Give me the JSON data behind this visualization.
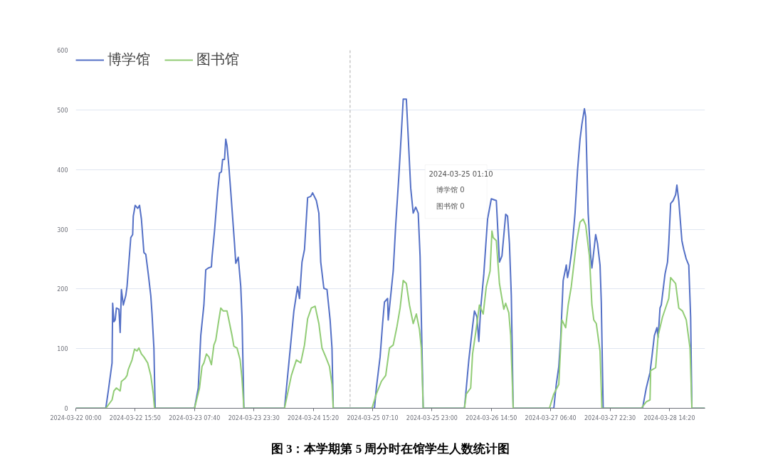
{
  "chart_data": {
    "type": "line",
    "series": [
      {
        "name": "博学馆",
        "color": "#5470c6",
        "x": [
          "2024-03-22T00:00",
          "2024-03-22T08:00",
          "2024-03-22T08:40",
          "2024-03-22T09:40",
          "2024-03-22T09:50",
          "2024-03-22T10:10",
          "2024-03-22T10:30",
          "2024-03-22T10:50",
          "2024-03-22T11:30",
          "2024-03-22T11:50",
          "2024-03-22T12:10",
          "2024-03-22T12:40",
          "2024-03-22T13:20",
          "2024-03-22T13:40",
          "2024-03-22T14:40",
          "2024-03-22T15:10",
          "2024-03-22T15:20",
          "2024-03-22T15:50",
          "2024-03-22T16:30",
          "2024-03-22T17:00",
          "2024-03-22T17:30",
          "2024-03-22T18:10",
          "2024-03-22T18:40",
          "2024-03-22T19:20",
          "2024-03-22T20:00",
          "2024-03-22T20:20",
          "2024-03-22T20:50",
          "2024-03-22T21:10",
          "2024-03-23T07:40",
          "2024-03-23T08:40",
          "2024-03-23T09:20",
          "2024-03-23T10:10",
          "2024-03-23T10:40",
          "2024-03-23T11:20",
          "2024-03-23T12:10",
          "2024-03-23T12:20",
          "2024-03-23T13:00",
          "2024-03-23T13:50",
          "2024-03-23T14:20",
          "2024-03-23T14:50",
          "2024-03-23T15:10",
          "2024-03-23T15:40",
          "2024-03-23T16:00",
          "2024-03-23T16:20",
          "2024-03-23T16:50",
          "2024-03-23T17:20",
          "2024-03-23T18:20",
          "2024-03-23T18:40",
          "2024-03-23T19:20",
          "2024-03-23T20:00",
          "2024-03-23T20:20",
          "2024-03-23T20:50",
          "2024-03-24T07:40",
          "2024-03-24T08:50",
          "2024-03-24T10:10",
          "2024-03-24T11:10",
          "2024-03-24T11:40",
          "2024-03-24T12:20",
          "2024-03-24T13:00",
          "2024-03-24T13:50",
          "2024-03-24T14:40",
          "2024-03-24T15:10",
          "2024-03-24T16:10",
          "2024-03-24T16:50",
          "2024-03-24T17:20",
          "2024-03-24T18:10",
          "2024-03-24T19:00",
          "2024-03-24T19:50",
          "2024-03-24T20:20",
          "2024-03-24T20:40",
          "2024-03-25T07:40",
          "2024-03-25T08:10",
          "2024-03-25T09:10",
          "2024-03-25T09:50",
          "2024-03-25T10:20",
          "2024-03-25T11:10",
          "2024-03-25T11:20",
          "2024-03-25T12:00",
          "2024-03-25T12:40",
          "2024-03-25T13:20",
          "2024-03-25T14:10",
          "2024-03-25T14:50",
          "2024-03-25T15:20",
          "2024-03-25T16:10",
          "2024-03-25T16:30",
          "2024-03-25T17:20",
          "2024-03-25T18:00",
          "2024-03-25T18:40",
          "2024-03-25T19:20",
          "2024-03-25T19:50",
          "2024-03-25T20:20",
          "2024-03-25T20:40",
          "2024-03-26T07:40",
          "2024-03-26T08:50",
          "2024-03-26T09:50",
          "2024-03-26T10:20",
          "2024-03-26T11:00",
          "2024-03-26T11:30",
          "2024-03-26T12:00",
          "2024-03-26T12:50",
          "2024-03-26T13:50",
          "2024-03-26T14:50",
          "2024-03-26T16:10",
          "2024-03-26T17:00",
          "2024-03-26T17:40",
          "2024-03-26T18:40",
          "2024-03-26T19:10",
          "2024-03-26T19:40",
          "2024-03-26T20:10",
          "2024-03-26T20:40",
          "2024-03-27T07:30",
          "2024-03-27T08:10",
          "2024-03-27T08:50",
          "2024-03-27T09:20",
          "2024-03-27T10:00",
          "2024-03-27T10:50",
          "2024-03-27T11:10",
          "2024-03-27T11:40",
          "2024-03-27T12:20",
          "2024-03-27T13:10",
          "2024-03-27T13:50",
          "2024-03-27T14:30",
          "2024-03-27T15:00",
          "2024-03-27T15:40",
          "2024-03-27T16:00",
          "2024-03-27T16:40",
          "2024-03-27T17:20",
          "2024-03-27T17:40",
          "2024-03-27T18:40",
          "2024-03-27T19:10",
          "2024-03-27T19:50",
          "2024-03-27T20:10",
          "2024-03-27T20:40",
          "2024-03-28T07:10",
          "2024-03-28T08:10",
          "2024-03-28T09:10",
          "2024-03-28T09:40",
          "2024-03-28T10:20",
          "2024-03-28T11:00",
          "2024-03-28T11:20",
          "2024-03-28T11:50",
          "2024-03-28T12:10",
          "2024-03-28T13:10",
          "2024-03-28T13:50",
          "2024-03-28T14:10",
          "2024-03-28T14:40",
          "2024-03-28T15:20",
          "2024-03-28T16:00",
          "2024-03-28T16:20",
          "2024-03-28T16:50",
          "2024-03-28T17:40",
          "2024-03-28T18:10",
          "2024-03-28T18:50",
          "2024-03-28T19:30",
          "2024-03-28T20:00",
          "2024-03-28T20:20",
          "2024-03-28T23:50"
        ],
        "values": [
          0,
          0,
          29,
          76,
          176,
          145,
          148,
          168,
          166,
          127,
          199,
          173,
          189,
          204,
          286,
          291,
          322,
          340,
          335,
          340,
          317,
          261,
          258,
          225,
          189,
          158,
          101,
          0,
          0,
          34,
          122,
          173,
          232,
          235,
          237,
          253,
          297,
          363,
          394,
          396,
          417,
          417,
          451,
          440,
          405,
          363,
          276,
          243,
          253,
          204,
          153,
          0,
          0,
          76,
          163,
          204,
          184,
          245,
          266,
          353,
          355,
          361,
          348,
          327,
          245,
          201,
          199,
          148,
          101,
          0,
          0,
          34,
          86,
          142,
          178,
          184,
          148,
          189,
          230,
          307,
          389,
          461,
          518,
          518,
          476,
          369,
          327,
          337,
          327,
          255,
          101,
          0,
          0,
          81,
          137,
          163,
          153,
          112,
          168,
          225,
          317,
          351,
          348,
          245,
          255,
          325,
          322,
          276,
          189,
          0,
          0,
          40,
          70,
          117,
          214,
          240,
          219,
          235,
          266,
          327,
          399,
          451,
          476,
          502,
          489,
          327,
          255,
          235,
          291,
          276,
          240,
          178,
          0,
          0,
          34,
          60,
          86,
          122,
          135,
          119,
          168,
          173,
          225,
          245,
          276,
          343,
          348,
          358,
          374,
          348,
          281,
          266,
          250,
          240,
          153,
          0,
          0
        ]
      },
      {
        "name": "图书馆",
        "color": "#91cc75",
        "x": [
          "2024-03-22T00:00",
          "2024-03-22T08:00",
          "2024-03-22T09:40",
          "2024-03-22T10:10",
          "2024-03-22T10:50",
          "2024-03-22T11:50",
          "2024-03-22T12:10",
          "2024-03-22T13:10",
          "2024-03-22T13:40",
          "2024-03-22T14:00",
          "2024-03-22T15:00",
          "2024-03-22T15:40",
          "2024-03-22T16:20",
          "2024-03-22T16:50",
          "2024-03-22T17:30",
          "2024-03-22T18:10",
          "2024-03-22T19:10",
          "2024-03-22T20:00",
          "2024-03-22T20:40",
          "2024-03-22T21:00",
          "2024-03-23T07:40",
          "2024-03-23T09:00",
          "2024-03-23T09:40",
          "2024-03-23T10:10",
          "2024-03-23T10:50",
          "2024-03-23T11:30",
          "2024-03-23T12:10",
          "2024-03-23T12:50",
          "2024-03-23T13:20",
          "2024-03-23T14:00",
          "2024-03-23T14:40",
          "2024-03-23T15:20",
          "2024-03-23T16:20",
          "2024-03-23T16:50",
          "2024-03-23T17:40",
          "2024-03-23T18:10",
          "2024-03-23T19:00",
          "2024-03-23T19:50",
          "2024-03-23T20:20",
          "2024-03-23T20:50",
          "2024-03-24T07:40",
          "2024-03-24T09:30",
          "2024-03-24T10:50",
          "2024-03-24T12:00",
          "2024-03-24T13:00",
          "2024-03-24T13:50",
          "2024-03-24T14:50",
          "2024-03-24T15:50",
          "2024-03-24T16:50",
          "2024-03-24T17:40",
          "2024-03-24T18:40",
          "2024-03-24T19:40",
          "2024-03-24T20:20",
          "2024-03-24T20:40",
          "2024-03-25T07:00",
          "2024-03-25T08:10",
          "2024-03-25T09:30",
          "2024-03-25T10:40",
          "2024-03-25T11:40",
          "2024-03-25T12:40",
          "2024-03-25T13:40",
          "2024-03-25T14:30",
          "2024-03-25T15:20",
          "2024-03-25T16:10",
          "2024-03-25T17:00",
          "2024-03-25T18:00",
          "2024-03-25T18:50",
          "2024-03-25T19:40",
          "2024-03-25T20:10",
          "2024-03-25T20:40",
          "2024-03-26T07:40",
          "2024-03-26T08:10",
          "2024-03-26T09:20",
          "2024-03-26T09:50",
          "2024-03-26T10:40",
          "2024-03-26T11:40",
          "2024-03-26T12:40",
          "2024-03-26T13:30",
          "2024-03-26T14:30",
          "2024-03-26T15:00",
          "2024-03-26T15:20",
          "2024-03-26T16:10",
          "2024-03-26T17:00",
          "2024-03-26T17:40",
          "2024-03-26T18:10",
          "2024-03-26T18:40",
          "2024-03-26T19:30",
          "2024-03-26T20:00",
          "2024-03-26T20:40",
          "2024-03-27T06:20",
          "2024-03-27T07:30",
          "2024-03-27T08:50",
          "2024-03-27T09:40",
          "2024-03-27T10:40",
          "2024-03-27T11:20",
          "2024-03-27T12:10",
          "2024-03-27T13:30",
          "2024-03-27T14:30",
          "2024-03-27T15:20",
          "2024-03-27T16:00",
          "2024-03-27T17:00",
          "2024-03-27T17:40",
          "2024-03-27T18:10",
          "2024-03-27T18:50",
          "2024-03-27T19:50",
          "2024-03-27T20:20",
          "2024-03-28T06:50",
          "2024-03-28T08:10",
          "2024-03-28T09:10",
          "2024-03-28T09:20",
          "2024-03-28T10:40",
          "2024-03-28T11:20",
          "2024-03-28T12:30",
          "2024-03-28T14:10",
          "2024-03-28T14:40",
          "2024-03-28T15:20",
          "2024-03-28T16:00",
          "2024-03-28T16:50",
          "2024-03-28T17:50",
          "2024-03-28T18:50",
          "2024-03-28T19:50",
          "2024-03-28T20:20",
          "2024-03-28T23:50"
        ],
        "values": [
          0,
          0,
          14,
          29,
          34,
          29,
          45,
          50,
          55,
          65,
          81,
          99,
          96,
          101,
          91,
          86,
          76,
          55,
          24,
          0,
          0,
          34,
          70,
          76,
          91,
          86,
          73,
          106,
          114,
          142,
          168,
          163,
          163,
          148,
          122,
          104,
          101,
          81,
          50,
          0,
          0,
          55,
          81,
          76,
          106,
          150,
          168,
          171,
          142,
          101,
          86,
          70,
          40,
          0,
          0,
          24,
          45,
          55,
          101,
          106,
          137,
          168,
          214,
          209,
          173,
          142,
          158,
          132,
          101,
          0,
          0,
          24,
          34,
          91,
          127,
          173,
          158,
          204,
          230,
          297,
          286,
          281,
          209,
          184,
          166,
          176,
          160,
          122,
          0,
          0,
          24,
          40,
          148,
          135,
          173,
          204,
          276,
          312,
          317,
          307,
          255,
          173,
          148,
          142,
          96,
          0,
          0,
          11,
          14,
          63,
          68,
          122,
          153,
          184,
          219,
          214,
          209,
          168,
          163,
          148,
          101,
          0,
          0
        ]
      }
    ],
    "xlim": [
      "2024-03-22T00:00",
      "2024-03-28T23:50"
    ],
    "xticks": [
      {
        "value": "2024-03-22T00:00",
        "label": "2024-03-22 00:00"
      },
      {
        "value": "2024-03-22T15:50",
        "label": "2024-03-22 15:50"
      },
      {
        "value": "2024-03-23T07:40",
        "label": "2024-03-23 07:40"
      },
      {
        "value": "2024-03-23T23:30",
        "label": "2024-03-23 23:30"
      },
      {
        "value": "2024-03-24T15:20",
        "label": "2024-03-24 15:20"
      },
      {
        "value": "2024-03-25T07:10",
        "label": "2024-03-25 07:10"
      },
      {
        "value": "2024-03-25T23:00",
        "label": "2024-03-25 23:00"
      },
      {
        "value": "2024-03-26T14:50",
        "label": "2024-03-26 14:50"
      },
      {
        "value": "2024-03-27T06:40",
        "label": "2024-03-27 06:40"
      },
      {
        "value": "2024-03-27T22:30",
        "label": "2024-03-27 22:30"
      },
      {
        "value": "2024-03-28T14:20",
        "label": "2024-03-28 14:20"
      }
    ],
    "ylim": [
      0,
      600
    ],
    "yticks": [
      0,
      100,
      200,
      300,
      400,
      500,
      600
    ],
    "grid": "y",
    "legend": "top left",
    "ref_lines": [
      {
        "axis": "x",
        "value": "2024-03-25T01:10",
        "label": null,
        "color": "#aaaaaa",
        "line_style": "dashed"
      }
    ],
    "annotations": [
      "2024-03-25 01:10",
      "博学馆 0",
      "图书馆 0",
      "图 3：本学期第 5 周分时在馆学生人数统计图"
    ]
  }
}
